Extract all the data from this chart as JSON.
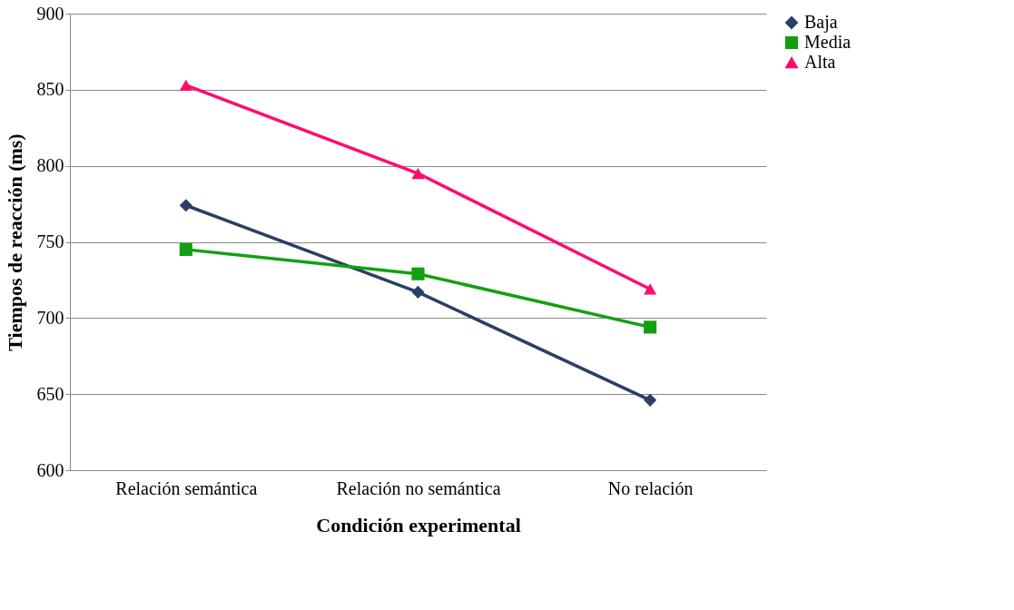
{
  "chart_data": {
    "type": "line",
    "xlabel": "Condición experimental",
    "ylabel": "Tiempos de reacción (ms)",
    "categories": [
      "Relación semántica",
      "Relación no semántica",
      "No relación"
    ],
    "series": [
      {
        "name": "Baja",
        "color": "#2b3f66",
        "marker": "diamond",
        "values": [
          774,
          717,
          646
        ]
      },
      {
        "name": "Media",
        "color": "#12a012",
        "marker": "square",
        "values": [
          745,
          729,
          694
        ]
      },
      {
        "name": "Alta",
        "color": "#ff0b6e",
        "marker": "triangle",
        "values": [
          853,
          795,
          719
        ]
      }
    ],
    "ylim": [
      600,
      900
    ],
    "yticks": [
      600,
      650,
      700,
      750,
      800,
      850,
      900
    ],
    "grid": "y",
    "legend": "right",
    "line_style": "solid"
  }
}
